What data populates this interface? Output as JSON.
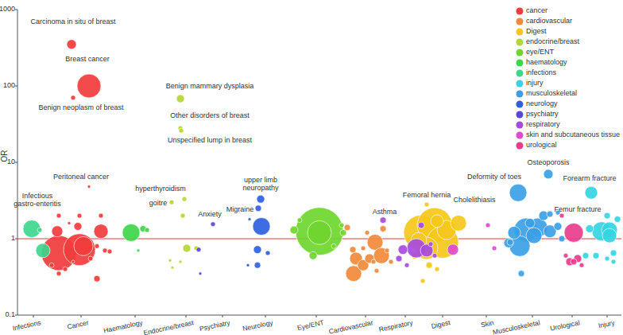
{
  "chart_data": {
    "type": "scatter",
    "y_label": "OR",
    "log": "y",
    "marker": "circle",
    "legend": "upper right",
    "xlim": [
      20,
      780
    ],
    "ylim": [
      0.1,
      1000
    ],
    "yticks": [
      0.1,
      1,
      10,
      100,
      1000
    ],
    "xticks": [
      {
        "value": 40,
        "label": "Infections"
      },
      {
        "value": 100,
        "label": "Cancer"
      },
      {
        "value": 168,
        "label": "Haematology"
      },
      {
        "value": 232,
        "label": "Endocrine/breast"
      },
      {
        "value": 278,
        "label": "Psychiatry"
      },
      {
        "value": 332,
        "label": "Neurology"
      },
      {
        "value": 396,
        "label": "Eye/ENT"
      },
      {
        "value": 458,
        "label": "Cardiovascular"
      },
      {
        "value": 508,
        "label": "Respiratory"
      },
      {
        "value": 555,
        "label": "Digest"
      },
      {
        "value": 610,
        "label": "Skin"
      },
      {
        "value": 668,
        "label": "Musculoskeletal"
      },
      {
        "value": 718,
        "label": "Urological"
      },
      {
        "value": 762,
        "label": "Injury"
      }
    ],
    "reference_value": 1,
    "series": [
      {
        "name": "cancer",
        "color": "#f23c3c",
        "x": [
          72,
          98,
          110,
          103,
          125,
          70,
          88,
          96,
          120,
          90,
          72,
          98,
          125,
          63,
          72,
          120,
          130,
          136,
          112,
          80,
          85,
          90,
          110
        ],
        "values": [
          0.65,
          0.72,
          100,
          0.8,
          1.25,
          1.25,
          350,
          1.45,
          0.3,
          70,
          2.0,
          2.0,
          2.0,
          0.45,
          0.35,
          0.8,
          0.7,
          0.68,
          0.55,
          0.4,
          1.6,
          0.5,
          4.8
        ],
        "sizes": [
          22,
          20,
          15,
          12,
          9,
          7,
          6,
          5,
          4,
          3,
          3,
          3,
          3,
          3,
          3,
          3,
          3,
          3,
          3,
          3,
          2,
          2,
          2
        ]
      },
      {
        "name": "cardiovascular",
        "color": "#f28a3a",
        "x": [
          443,
          470,
          478,
          446,
          455,
          463,
          435,
          442,
          480,
          460,
          490,
          455,
          468,
          472,
          485
        ],
        "values": [
          0.35,
          0.9,
          0.6,
          0.55,
          0.45,
          0.55,
          1.4,
          0.72,
          1.35,
          1.2,
          0.5,
          0.75,
          0.5,
          0.38,
          0.7
        ],
        "sizes": [
          10,
          10,
          10,
          8,
          7,
          6,
          4,
          4,
          4,
          3,
          3,
          3,
          3,
          3,
          3
        ]
      },
      {
        "name": "Digest",
        "color": "#f5c81b",
        "x": [
          528,
          545,
          555,
          535,
          560,
          525,
          575,
          548,
          538,
          520,
          535,
          530,
          548
        ],
        "values": [
          1.2,
          1.5,
          0.9,
          0.75,
          1.3,
          0.95,
          1.6,
          1.7,
          0.45,
          0.6,
          2.8,
          0.28,
          0.4
        ],
        "sizes": [
          22,
          22,
          20,
          14,
          12,
          10,
          10,
          8,
          4,
          4,
          3,
          3,
          3
        ]
      },
      {
        "name": "endocrine/breast",
        "color": "#b5d633",
        "x": [
          225,
          225,
          226,
          230,
          214,
          228,
          233,
          245,
          225,
          215,
          212
        ],
        "values": [
          68,
          28,
          26,
          3.3,
          3.0,
          2.0,
          0.75,
          0.75,
          0.5,
          0.42,
          0.52
        ],
        "sizes": [
          5,
          3,
          3,
          3,
          3,
          3,
          5,
          3,
          2,
          2,
          2
        ]
      },
      {
        "name": "eye/ENT",
        "color": "#6fd62e",
        "x": [
          400,
          400,
          368,
          392,
          430,
          428,
          418,
          375
        ],
        "values": [
          1.25,
          1.2,
          1.3,
          0.6,
          1.2,
          1.5,
          0.8,
          1.75
        ],
        "sizes": [
          30,
          15,
          5,
          5,
          4,
          3,
          3,
          3
        ]
      },
      {
        "name": "haematology",
        "color": "#3dd64a",
        "x": [
          163,
          178,
          183,
          172
        ],
        "values": [
          1.2,
          1.35,
          1.3,
          0.7
        ],
        "sizes": [
          11,
          4,
          3,
          2
        ]
      },
      {
        "name": "infections",
        "color": "#3ed68d",
        "x": [
          38,
          52,
          48
        ],
        "values": [
          1.35,
          0.7,
          1.3
        ],
        "sizes": [
          11,
          9,
          3
        ]
      },
      {
        "name": "injury",
        "color": "#34d5e2",
        "x": [
          755,
          765,
          765,
          742,
          740,
          762,
          748,
          735,
          770,
          775,
          762,
          770
        ],
        "values": [
          1.25,
          1.3,
          1.1,
          4.0,
          1.35,
          2.0,
          0.6,
          0.6,
          0.65,
          1.8,
          0.55,
          0.5
        ],
        "sizes": [
          12,
          10,
          9,
          8,
          5,
          4,
          4,
          4,
          4,
          4,
          3,
          3
        ]
      },
      {
        "name": "musculoskeletal",
        "color": "#3b9fe6",
        "x": [
          660,
          652,
          675,
          650,
          670,
          690,
          645,
          688,
          682,
          665,
          638,
          700,
          690,
          654,
          640,
          705,
          700
        ],
        "values": [
          1.3,
          0.8,
          1.4,
          4.0,
          1.1,
          1.25,
          1.2,
          7.0,
          2.0,
          1.6,
          0.88,
          1.45,
          2.1,
          0.35,
          0.9,
          1.0,
          2.2
        ],
        "sizes": [
          15,
          13,
          12,
          11,
          10,
          8,
          8,
          6,
          6,
          6,
          6,
          5,
          4,
          4,
          4,
          4,
          3
        ]
      },
      {
        "name": "neurology",
        "color": "#2e5fe0",
        "x": [
          327,
          322,
          326,
          323,
          322,
          335,
          310,
          312
        ],
        "values": [
          1.45,
          0.72,
          3.3,
          2.5,
          0.45,
          0.65,
          0.45,
          1.8
        ],
        "sizes": [
          11,
          5,
          5,
          4,
          4,
          3,
          2,
          2
        ]
      },
      {
        "name": "psychiatry",
        "color": "#5b47d9",
        "x": [
          266,
          248,
          250
        ],
        "values": [
          1.55,
          0.72,
          0.35
        ],
        "sizes": [
          3,
          3,
          2
        ]
      },
      {
        "name": "respiratory",
        "color": "#a74ae0",
        "x": [
          522,
          535,
          505,
          480,
          500,
          528,
          510,
          545,
          540
        ],
        "values": [
          0.75,
          0.7,
          0.72,
          1.75,
          0.55,
          1.5,
          0.45,
          0.6,
          0.85
        ],
        "sizes": [
          12,
          8,
          6,
          4,
          4,
          4,
          3,
          3,
          3
        ]
      },
      {
        "name": "skin and subcutaneous tissue",
        "color": "#e04ad2",
        "x": [
          568,
          612,
          620
        ],
        "values": [
          0.72,
          1.5,
          0.75
        ],
        "sizes": [
          7,
          3,
          3
        ]
      },
      {
        "name": "urological",
        "color": "#e83d8d",
        "x": [
          720,
          715,
          725,
          720,
          730,
          710,
          705
        ],
        "values": [
          1.2,
          0.5,
          0.55,
          0.5,
          0.45,
          0.6,
          2.0
        ],
        "sizes": [
          12,
          5,
          5,
          4,
          3,
          3,
          3
        ]
      }
    ],
    "annotations": [
      {
        "text": "Carcinoma in situ of breast",
        "x": 90,
        "y": 650
      },
      {
        "text": "Breast cancer",
        "x": 108,
        "y": 210
      },
      {
        "text": "Benign neoplasm of breast",
        "x": 100,
        "y": 49
      },
      {
        "text": "Peritoneal cancer",
        "x": 100,
        "y": 6.1
      },
      {
        "text": "Infectious\ngastro-enteritis",
        "x": 45,
        "y": 2.7
      },
      {
        "text": "hyperthyroidism",
        "x": 200,
        "y": 4.2
      },
      {
        "text": "goitre",
        "x": 197,
        "y": 2.73
      },
      {
        "text": "Benign mammary dysplasia",
        "x": 262,
        "y": 94
      },
      {
        "text": "Other disorders of breast",
        "x": 262,
        "y": 38.4
      },
      {
        "text": "Unspecified lump in breast",
        "x": 262,
        "y": 18
      },
      {
        "text": "Anxiety",
        "x": 262,
        "y": 1.96
      },
      {
        "text": "upper limb\nneuropathy",
        "x": 326,
        "y": 4.27
      },
      {
        "text": "Migraine",
        "x": 300,
        "y": 2.26
      },
      {
        "text": "Asthma",
        "x": 482,
        "y": 2.1
      },
      {
        "text": "Femoral hernia",
        "x": 535,
        "y": 3.5
      },
      {
        "text": "Cholelithiasis",
        "x": 595,
        "y": 3.0
      },
      {
        "text": "Deformity of toes",
        "x": 620,
        "y": 6.1
      },
      {
        "text": "Osteoporosis",
        "x": 688,
        "y": 9.3
      },
      {
        "text": "Forearm fracture",
        "x": 740,
        "y": 5.8
      },
      {
        "text": "Femur fracture",
        "x": 725,
        "y": 2.26
      }
    ]
  }
}
